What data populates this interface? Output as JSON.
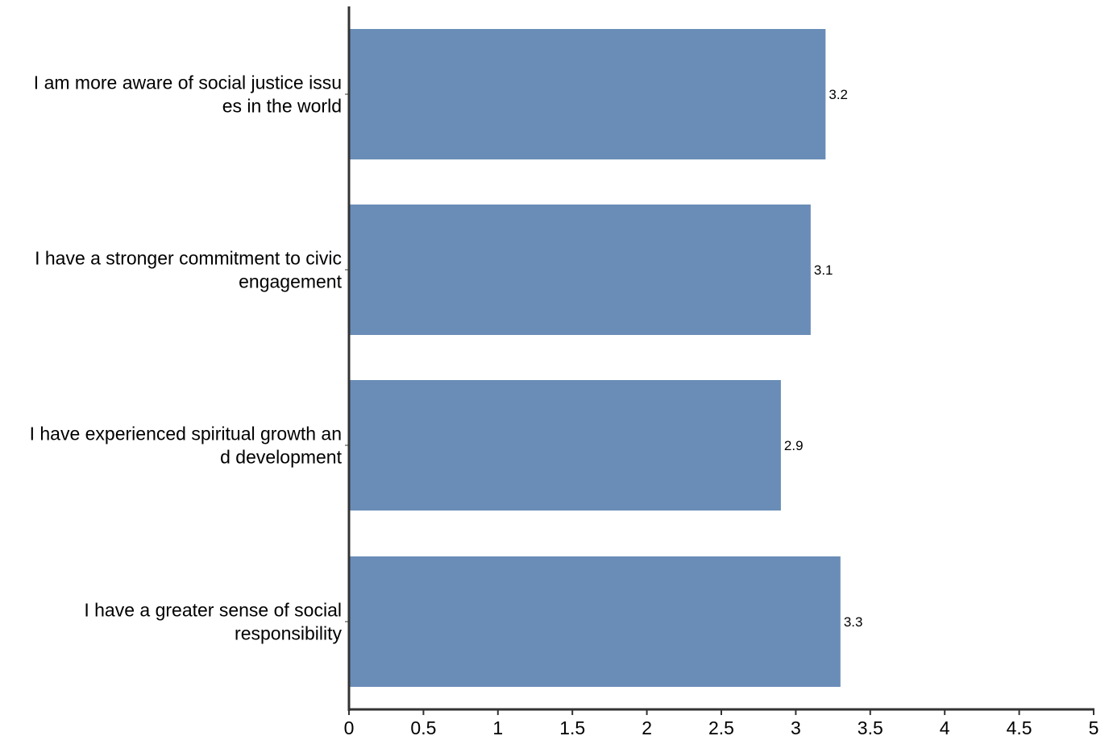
{
  "chart_data": {
    "type": "bar",
    "orientation": "horizontal",
    "categories": [
      [
        "I am more aware of social justice issu",
        "es in the world"
      ],
      [
        "I have a stronger commitment to civic",
        "engagement"
      ],
      [
        "I have experienced spiritual growth an",
        "d development"
      ],
      [
        "I have a greater sense of social",
        "responsibility"
      ]
    ],
    "values": [
      3.2,
      3.1,
      2.9,
      3.3
    ],
    "data_labels": [
      "3.2",
      "3.1",
      "2.9",
      "3.3"
    ],
    "xlim": [
      0,
      5
    ],
    "x_ticks": [
      0,
      0.5,
      1,
      1.5,
      2,
      2.5,
      3,
      3.5,
      4,
      4.5,
      5
    ],
    "x_tick_labels": [
      "0",
      "0.5",
      "1",
      "1.5",
      "2",
      "2.5",
      "3",
      "3.5",
      "4",
      "4.5",
      "5"
    ],
    "bar_color": "#6a8db7",
    "axis_color": "#333333",
    "grid": false,
    "legend": "none"
  }
}
